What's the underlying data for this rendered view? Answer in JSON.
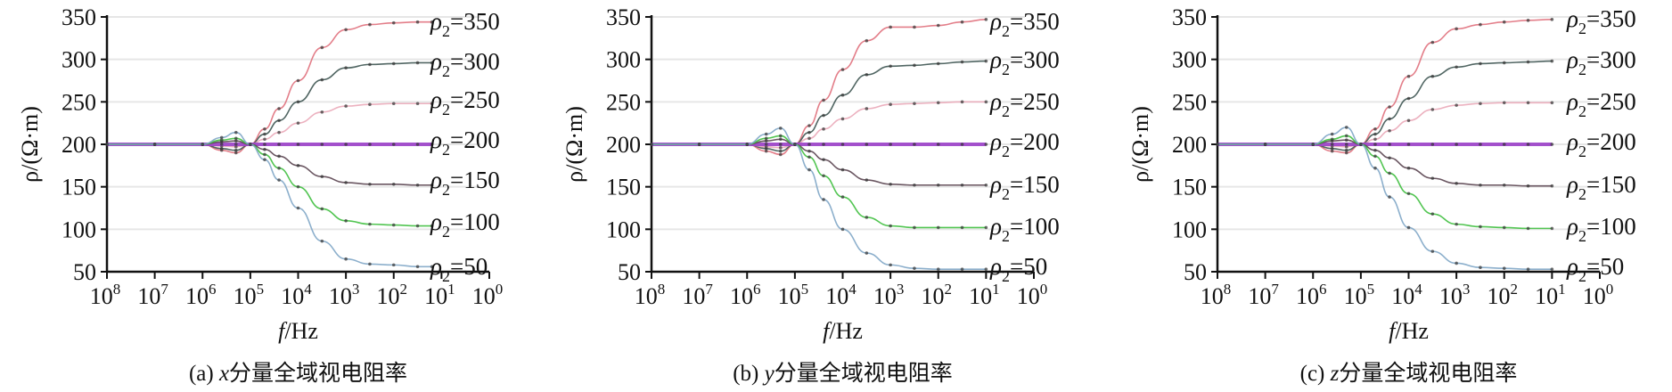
{
  "chart_data": [
    {
      "type": "line",
      "caption_prefix": "(a) ",
      "caption_var": "x",
      "caption_text": "分量全域视电阻率",
      "xlabel_var": "f",
      "xlabel_unit": "/Hz",
      "ylabel": "ρ/(Ω·m)",
      "x_scale": "log",
      "x_reversed": true,
      "xlim_log10": [
        8,
        0
      ],
      "x_ticks": [
        "8",
        "7",
        "6",
        "5",
        "4",
        "3",
        "2",
        "1",
        "0"
      ],
      "ylim": [
        50,
        350
      ],
      "y_ticks": [
        "350",
        "300",
        "250",
        "200",
        "150",
        "100",
        "50"
      ],
      "grid": "horizontal",
      "x_log10_f": [
        8,
        7,
        6,
        5.6,
        5.3,
        5,
        4.7,
        4.4,
        4,
        3.5,
        3,
        2.5,
        2,
        1.5,
        1.2
      ],
      "series": [
        {
          "name": "ρ2=350",
          "label_base": "ρ",
          "label_sub": "2",
          "label_value": "=350",
          "color": "#e0707c",
          "values": [
            200,
            200,
            200,
            193,
            190,
            200,
            218,
            242,
            275,
            314,
            335,
            341,
            343,
            344,
            344
          ]
        },
        {
          "name": "ρ2=300",
          "label_base": "ρ",
          "label_sub": "2",
          "label_value": "=300",
          "color": "#3e5552",
          "values": [
            200,
            200,
            200,
            195,
            193,
            200,
            212,
            228,
            250,
            276,
            290,
            294,
            295,
            296,
            296
          ]
        },
        {
          "name": "ρ2=250",
          "label_base": "ρ",
          "label_sub": "2",
          "label_value": "=250",
          "color": "#eaa9b8",
          "values": [
            200,
            200,
            200,
            198,
            197,
            200,
            206,
            214,
            225,
            238,
            245,
            247,
            248,
            248,
            248
          ]
        },
        {
          "name": "ρ2=200",
          "label_base": "ρ",
          "label_sub": "2",
          "label_value": "=200",
          "color": "#9a3fc8",
          "values": [
            200,
            200,
            200,
            200,
            200,
            200,
            200,
            200,
            200,
            200,
            200,
            200,
            200,
            200,
            200
          ]
        },
        {
          "name": "ρ2=150",
          "label_base": "ρ",
          "label_sub": "2",
          "label_value": "=150",
          "color": "#5a4450",
          "values": [
            200,
            200,
            200,
            203,
            204,
            200,
            194,
            186,
            175,
            162,
            155,
            153,
            153,
            152,
            152
          ]
        },
        {
          "name": "ρ2=100",
          "label_base": "ρ",
          "label_sub": "2",
          "label_value": "=100",
          "color": "#3fbf3f",
          "values": [
            200,
            200,
            200,
            205,
            207,
            200,
            188,
            172,
            150,
            124,
            110,
            106,
            105,
            104,
            104
          ]
        },
        {
          "name": "ρ2=50",
          "label_base": "ρ",
          "label_sub": "2",
          "label_value": "=50",
          "color": "#7fa6c6",
          "values": [
            200,
            200,
            200,
            208,
            214,
            200,
            182,
            158,
            125,
            86,
            65,
            59,
            58,
            56,
            56
          ]
        }
      ]
    },
    {
      "type": "line",
      "caption_prefix": "(b) ",
      "caption_var": "y",
      "caption_text": "分量全域视电阻率",
      "xlabel_var": "f",
      "xlabel_unit": "/Hz",
      "ylabel": "ρ/(Ω·m)",
      "x_scale": "log",
      "x_reversed": true,
      "xlim_log10": [
        8,
        0
      ],
      "x_ticks": [
        "8",
        "7",
        "6",
        "5",
        "4",
        "3",
        "2",
        "1",
        "0"
      ],
      "ylim": [
        50,
        350
      ],
      "y_ticks": [
        "350",
        "300",
        "250",
        "200",
        "150",
        "100",
        "50"
      ],
      "grid": "horizontal",
      "x_log10_f": [
        8,
        7,
        6,
        5.6,
        5.3,
        5,
        4.7,
        4.4,
        4,
        3.5,
        3,
        2.5,
        2,
        1.5,
        1
      ],
      "series": [
        {
          "name": "ρ2=350",
          "label_base": "ρ",
          "label_sub": "2",
          "label_value": "=350",
          "color": "#e0707c",
          "values": [
            200,
            200,
            200,
            192,
            188,
            200,
            222,
            252,
            288,
            322,
            338,
            338,
            340,
            344,
            347
          ]
        },
        {
          "name": "ρ2=300",
          "label_base": "ρ",
          "label_sub": "2",
          "label_value": "=300",
          "color": "#3e5552",
          "values": [
            200,
            200,
            200,
            195,
            192,
            200,
            214,
            234,
            258,
            282,
            292,
            293,
            295,
            297,
            298
          ]
        },
        {
          "name": "ρ2=250",
          "label_base": "ρ",
          "label_sub": "2",
          "label_value": "=250",
          "color": "#eaa9b8",
          "values": [
            200,
            200,
            200,
            197,
            196,
            200,
            207,
            218,
            230,
            242,
            247,
            248,
            249,
            250,
            250
          ]
        },
        {
          "name": "ρ2=200",
          "label_base": "ρ",
          "label_sub": "2",
          "label_value": "=200",
          "color": "#9a3fc8",
          "values": [
            200,
            200,
            200,
            200,
            200,
            200,
            200,
            200,
            200,
            200,
            200,
            200,
            200,
            200,
            200
          ]
        },
        {
          "name": "ρ2=150",
          "label_base": "ρ",
          "label_sub": "2",
          "label_value": "=150",
          "color": "#5a4450",
          "values": [
            200,
            200,
            200,
            204,
            206,
            200,
            192,
            182,
            170,
            158,
            153,
            152,
            152,
            152,
            152
          ]
        },
        {
          "name": "ρ2=100",
          "label_base": "ρ",
          "label_sub": "2",
          "label_value": "=100",
          "color": "#3fbf3f",
          "values": [
            200,
            200,
            200,
            207,
            210,
            200,
            185,
            163,
            138,
            114,
            104,
            102,
            102,
            102,
            102
          ]
        },
        {
          "name": "ρ2=50",
          "label_base": "ρ",
          "label_sub": "2",
          "label_value": "=50",
          "color": "#7fa6c6",
          "values": [
            200,
            200,
            200,
            212,
            219,
            200,
            170,
            135,
            100,
            72,
            58,
            54,
            53,
            53,
            53
          ]
        }
      ]
    },
    {
      "type": "line",
      "caption_prefix": "(c) ",
      "caption_var": "z",
      "caption_text": "分量全域视电阻率",
      "xlabel_var": "f",
      "xlabel_unit": "/Hz",
      "ylabel": "ρ/(Ω·m)",
      "x_scale": "log",
      "x_reversed": true,
      "xlim_log10": [
        8,
        0
      ],
      "x_ticks": [
        "8",
        "7",
        "6",
        "5",
        "4",
        "3",
        "2",
        "1",
        "0"
      ],
      "ylim": [
        50,
        350
      ],
      "y_ticks": [
        "350",
        "300",
        "250",
        "200",
        "150",
        "100",
        "50"
      ],
      "grid": "horizontal",
      "x_log10_f": [
        8,
        7,
        6,
        5.6,
        5.3,
        5,
        4.7,
        4.4,
        4,
        3.5,
        3,
        2.5,
        2,
        1.5,
        1
      ],
      "series": [
        {
          "name": "ρ2=350",
          "label_base": "ρ",
          "label_sub": "2",
          "label_value": "=350",
          "color": "#e0707c",
          "values": [
            200,
            200,
            200,
            192,
            190,
            200,
            218,
            244,
            280,
            320,
            336,
            341,
            344,
            346,
            347
          ]
        },
        {
          "name": "ρ2=300",
          "label_base": "ρ",
          "label_sub": "2",
          "label_value": "=300",
          "color": "#3e5552",
          "values": [
            200,
            200,
            200,
            195,
            193,
            200,
            212,
            230,
            254,
            280,
            291,
            295,
            296,
            297,
            298
          ]
        },
        {
          "name": "ρ2=250",
          "label_base": "ρ",
          "label_sub": "2",
          "label_value": "=250",
          "color": "#eaa9b8",
          "values": [
            200,
            200,
            200,
            198,
            197,
            200,
            206,
            216,
            228,
            241,
            246,
            248,
            249,
            249,
            249
          ]
        },
        {
          "name": "ρ2=200",
          "label_base": "ρ",
          "label_sub": "2",
          "label_value": "=200",
          "color": "#9a3fc8",
          "values": [
            200,
            200,
            200,
            200,
            200,
            200,
            200,
            200,
            200,
            200,
            200,
            200,
            200,
            200,
            200
          ]
        },
        {
          "name": "ρ2=150",
          "label_base": "ρ",
          "label_sub": "2",
          "label_value": "=150",
          "color": "#5a4450",
          "values": [
            200,
            200,
            200,
            204,
            205,
            200,
            193,
            184,
            172,
            160,
            154,
            152,
            152,
            151,
            151
          ]
        },
        {
          "name": "ρ2=100",
          "label_base": "ρ",
          "label_sub": "2",
          "label_value": "=100",
          "color": "#3fbf3f",
          "values": [
            200,
            200,
            200,
            206,
            210,
            200,
            186,
            166,
            142,
            118,
            106,
            103,
            102,
            101,
            101
          ]
        },
        {
          "name": "ρ2=50",
          "label_base": "ρ",
          "label_sub": "2",
          "label_value": "=50",
          "color": "#7fa6c6",
          "values": [
            200,
            200,
            200,
            212,
            220,
            200,
            172,
            138,
            102,
            74,
            60,
            55,
            54,
            53,
            53
          ]
        }
      ]
    }
  ]
}
